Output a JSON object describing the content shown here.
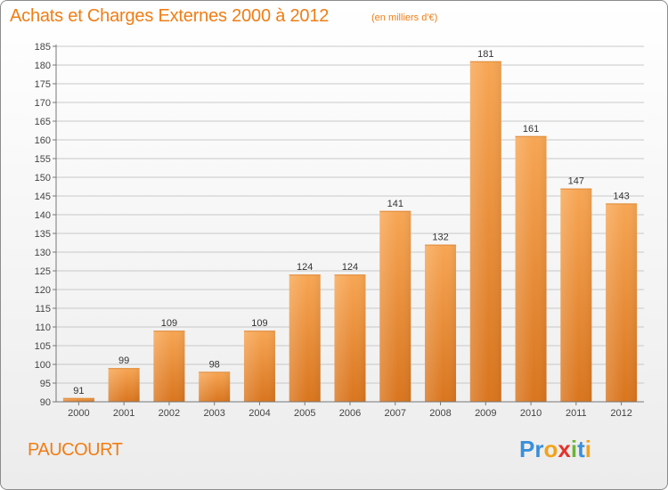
{
  "header": {
    "title": "Achats et Charges Externes 2000 à 2012",
    "subtitle": "(en milliers d'€)"
  },
  "footer": {
    "commune": "PAUCOURT",
    "logo_text": "Proxiti",
    "logo_letters": [
      {
        "char": "P",
        "color": "#3a8fd9"
      },
      {
        "char": "r",
        "color": "#3a8fd9"
      },
      {
        "char": "o",
        "color": "#f2a31b"
      },
      {
        "char": "x",
        "color": "#e5332a"
      },
      {
        "char": "i",
        "color": "#6bb536"
      },
      {
        "char": "t",
        "color": "#3a8fd9"
      },
      {
        "char": "i",
        "color": "#f2a31b"
      }
    ]
  },
  "colors": {
    "accent": "#f07d14",
    "bar_top": "#f7a654",
    "bar_bottom": "#d9751e",
    "grid": "#c8c8c8"
  },
  "chart_data": {
    "type": "bar",
    "title": "Achats et Charges Externes 2000 à 2012",
    "subtitle": "(en milliers d'€)",
    "categories": [
      "2000",
      "2001",
      "2002",
      "2003",
      "2004",
      "2005",
      "2006",
      "2007",
      "2008",
      "2009",
      "2010",
      "2011",
      "2012"
    ],
    "values": [
      91,
      99,
      109,
      98,
      109,
      124,
      124,
      141,
      132,
      181,
      161,
      147,
      143
    ],
    "ylim": [
      90,
      185
    ],
    "yticks": [
      90,
      95,
      100,
      105,
      110,
      115,
      120,
      125,
      130,
      135,
      140,
      145,
      150,
      155,
      160,
      165,
      170,
      175,
      180,
      185
    ],
    "grid": true,
    "xlabel": "",
    "ylabel": ""
  }
}
